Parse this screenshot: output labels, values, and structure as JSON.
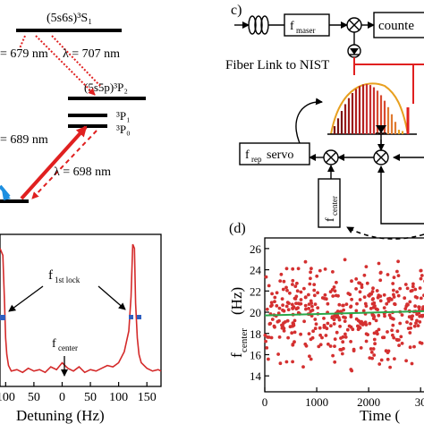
{
  "panel_c": {
    "label": "c)",
    "f_maser_main": "f",
    "f_maser_sub": "maser",
    "counter_label": "counte",
    "fiber_link_label": "Fiber Link to NIST",
    "servo_f": "f",
    "servo_sub": "rep",
    "servo_word": "servo",
    "center_f": "f",
    "center_sub": "center"
  },
  "level_diagram": {
    "s1_label": "(5s6s)³S₁",
    "p2_label": "(5s5p)³P₂",
    "p1_label": "³P₁",
    "p0_label": "³P₀",
    "lambda_707": "λ = 707 nm",
    "lambda_679": "= 679 nm",
    "lambda_689": "= 689 nm",
    "lambda_698": "λ = 698 nm",
    "colors": {
      "red": "#e02020",
      "blue": "#1e8fe0"
    }
  },
  "spectrum": {
    "xlabel": "Detuning (Hz)",
    "lock_label_main": "f",
    "lock_label_sub": "1st lock",
    "center_label_main": "f",
    "center_label_sub": "center",
    "xticks": [
      "100",
      "50",
      "0",
      "50",
      "100",
      "150"
    ],
    "line_color": "#d42a2a",
    "marker_color": "#2f5fc0"
  },
  "chart_data": [
    {
      "type": "line",
      "title": "",
      "xlabel": "Detuning (Hz)",
      "ylabel": "",
      "xlim": [
        -110,
        175
      ],
      "x": [
        -110,
        -105,
        -102,
        -100,
        -98,
        -95,
        -90,
        -80,
        -70,
        -60,
        -50,
        -40,
        -30,
        -20,
        -10,
        0,
        10,
        20,
        30,
        40,
        50,
        60,
        70,
        80,
        90,
        100,
        110,
        118,
        122,
        125,
        128,
        130,
        133,
        136,
        140,
        150,
        160,
        170,
        175
      ],
      "y": [
        0.95,
        0.9,
        0.55,
        0.3,
        0.18,
        0.1,
        0.06,
        0.07,
        0.05,
        0.08,
        0.06,
        0.07,
        0.05,
        0.09,
        0.07,
        0.12,
        0.08,
        0.06,
        0.09,
        0.05,
        0.07,
        0.06,
        0.08,
        0.1,
        0.09,
        0.12,
        0.2,
        0.35,
        0.6,
        0.98,
        0.95,
        0.55,
        0.3,
        0.18,
        0.12,
        0.08,
        0.06,
        0.07,
        0.06
      ]
    },
    {
      "type": "scatter",
      "title": "",
      "xlabel": "Time (",
      "ylabel": "f center (Hz)",
      "xlim": [
        0,
        3100
      ],
      "ylim": [
        12.5,
        27
      ],
      "yticks": [
        "14",
        "16",
        "18",
        "20",
        "22",
        "24",
        "26"
      ],
      "xticks": [
        "0",
        "1000",
        "2000",
        "30"
      ],
      "fit_line": {
        "y_at_0": 19.7,
        "y_at_end": 20.1,
        "color": "#2aa84a"
      },
      "marker_color": "#d43030",
      "panel_label": "(d)"
    }
  ]
}
